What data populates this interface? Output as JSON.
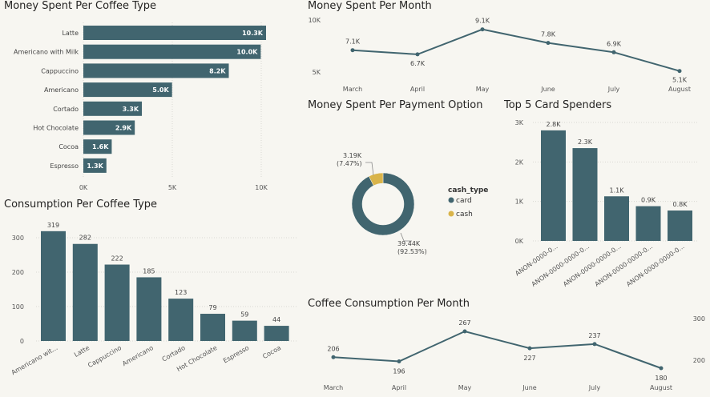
{
  "colors": {
    "primary": "#41656f",
    "accent": "#d9b44a",
    "background": "#f7f6f1"
  },
  "chart_data": [
    {
      "id": "spent_type",
      "type": "bar",
      "orientation": "horizontal",
      "title": "Money Spent Per Coffee Type",
      "categories": [
        "Latte",
        "Americano with Milk",
        "Cappuccino",
        "Americano",
        "Cortado",
        "Hot Chocolate",
        "Cocoa",
        "Espresso"
      ],
      "values": [
        10300,
        10000,
        8200,
        5000,
        3300,
        2900,
        1600,
        1300
      ],
      "data_labels": [
        "10.3K",
        "10.0K",
        "8.2K",
        "5.0K",
        "3.3K",
        "2.9K",
        "1.6K",
        "1.3K"
      ],
      "xlim": [
        0,
        11000
      ],
      "x_ticks": [
        0,
        5000,
        10000
      ],
      "x_tick_labels": [
        "0K",
        "5K",
        "10K"
      ],
      "grid": true
    },
    {
      "id": "spent_month",
      "type": "line",
      "title": "Money Spent Per Month",
      "categories": [
        "March",
        "April",
        "May",
        "June",
        "July",
        "August"
      ],
      "values": [
        7100,
        6700,
        9100,
        7800,
        6900,
        5100
      ],
      "data_labels": [
        "7.1K",
        "6.7K",
        "9.1K",
        "7.8K",
        "6.9K",
        "5.1K"
      ],
      "ylim": [
        5000,
        10000
      ],
      "y_ticks": [
        5000,
        10000
      ],
      "y_tick_labels": [
        "5K",
        "10K"
      ]
    },
    {
      "id": "payment",
      "type": "pie",
      "donut": true,
      "title": "Money Spent Per Payment Option",
      "legend_title": "cash_type",
      "legend_position": "right",
      "slices": [
        {
          "name": "card",
          "value": 39440,
          "label": "39.44K",
          "pct_label": "(92.53%)",
          "color": "#41656f"
        },
        {
          "name": "cash",
          "value": 3190,
          "label": "3.19K",
          "pct_label": "(7.47%)",
          "color": "#d9b44a"
        }
      ]
    },
    {
      "id": "top5",
      "type": "bar",
      "title": "Top 5 Card Spenders",
      "categories": [
        "ANON-0000-0...",
        "ANON-0000-0000-0...",
        "ANON-0000-0000-0...",
        "ANON-0000-0000-0...",
        "ANON-0000-0000-0..."
      ],
      "values": [
        2800,
        2350,
        1130,
        880,
        770
      ],
      "data_labels": [
        "2.8K",
        "2.3K",
        "1.1K",
        "0.9K",
        "0.8K"
      ],
      "ylim": [
        0,
        3000
      ],
      "y_ticks": [
        0,
        1000,
        2000,
        3000
      ],
      "y_tick_labels": [
        "0K",
        "1K",
        "2K",
        "3K"
      ],
      "grid": true
    },
    {
      "id": "consumption_type",
      "type": "bar",
      "title": "Consumption Per Coffee Type",
      "categories": [
        "Americano wit...",
        "Latte",
        "Cappuccino",
        "Americano",
        "Cortado",
        "Hot Chocolate",
        "Espresso",
        "Cocoa"
      ],
      "values": [
        319,
        282,
        222,
        185,
        123,
        79,
        59,
        44
      ],
      "data_labels": [
        "319",
        "282",
        "222",
        "185",
        "123",
        "79",
        "59",
        "44"
      ],
      "ylim": [
        0,
        340
      ],
      "y_ticks": [
        0,
        100,
        200,
        300
      ],
      "y_tick_labels": [
        "0",
        "100",
        "200",
        "300"
      ],
      "grid": true
    },
    {
      "id": "consumption_month",
      "type": "line",
      "title": "Coffee Consumption Per Month",
      "categories": [
        "March",
        "April",
        "May",
        "June",
        "July",
        "August"
      ],
      "values": [
        206,
        196,
        267,
        227,
        237,
        180
      ],
      "data_labels": [
        "206",
        "196",
        "267",
        "227",
        "237",
        "180"
      ],
      "ylim": [
        180,
        300
      ],
      "y_ticks": [
        200,
        300
      ],
      "y_tick_labels": [
        "200",
        "300"
      ]
    }
  ]
}
